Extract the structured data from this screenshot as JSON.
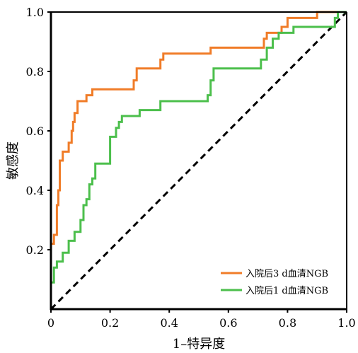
{
  "chart_data": {
    "type": "line",
    "title": "",
    "xlabel": "1–特异度",
    "ylabel": "敏感度",
    "xlim": [
      0,
      1
    ],
    "ylim": [
      0,
      1
    ],
    "x_ticks": [
      "0",
      "0.2",
      "0.4",
      "0.6",
      "0.8",
      "1.0"
    ],
    "y_ticks": [
      "0.2",
      "0.4",
      "0.6",
      "0.8",
      "1.0"
    ],
    "grid": false,
    "legend_position": "bottom-right",
    "series": [
      {
        "name": "入院后3 d血清NGB",
        "color": "#f07c28",
        "points": [
          [
            0.0,
            0.0
          ],
          [
            0.0,
            0.22
          ],
          [
            0.01,
            0.22
          ],
          [
            0.01,
            0.25
          ],
          [
            0.02,
            0.25
          ],
          [
            0.02,
            0.35
          ],
          [
            0.025,
            0.35
          ],
          [
            0.025,
            0.4
          ],
          [
            0.03,
            0.4
          ],
          [
            0.03,
            0.5
          ],
          [
            0.04,
            0.5
          ],
          [
            0.04,
            0.53
          ],
          [
            0.06,
            0.53
          ],
          [
            0.06,
            0.56
          ],
          [
            0.07,
            0.56
          ],
          [
            0.07,
            0.6
          ],
          [
            0.075,
            0.6
          ],
          [
            0.075,
            0.63
          ],
          [
            0.08,
            0.63
          ],
          [
            0.08,
            0.66
          ],
          [
            0.09,
            0.66
          ],
          [
            0.09,
            0.7
          ],
          [
            0.12,
            0.7
          ],
          [
            0.12,
            0.72
          ],
          [
            0.14,
            0.72
          ],
          [
            0.14,
            0.74
          ],
          [
            0.28,
            0.74
          ],
          [
            0.28,
            0.77
          ],
          [
            0.29,
            0.77
          ],
          [
            0.29,
            0.81
          ],
          [
            0.37,
            0.81
          ],
          [
            0.37,
            0.84
          ],
          [
            0.38,
            0.84
          ],
          [
            0.38,
            0.86
          ],
          [
            0.54,
            0.86
          ],
          [
            0.54,
            0.88
          ],
          [
            0.72,
            0.88
          ],
          [
            0.72,
            0.91
          ],
          [
            0.73,
            0.91
          ],
          [
            0.73,
            0.93
          ],
          [
            0.78,
            0.93
          ],
          [
            0.78,
            0.95
          ],
          [
            0.8,
            0.95
          ],
          [
            0.8,
            0.98
          ],
          [
            0.9,
            0.98
          ],
          [
            0.9,
            1.0
          ],
          [
            1.0,
            1.0
          ]
        ]
      },
      {
        "name": "入院后1 d血清NGB",
        "color": "#4cbf4c",
        "points": [
          [
            0.0,
            0.0
          ],
          [
            0.0,
            0.09
          ],
          [
            0.01,
            0.09
          ],
          [
            0.01,
            0.14
          ],
          [
            0.02,
            0.14
          ],
          [
            0.02,
            0.16
          ],
          [
            0.04,
            0.16
          ],
          [
            0.04,
            0.19
          ],
          [
            0.06,
            0.19
          ],
          [
            0.06,
            0.23
          ],
          [
            0.08,
            0.23
          ],
          [
            0.08,
            0.26
          ],
          [
            0.1,
            0.26
          ],
          [
            0.1,
            0.3
          ],
          [
            0.11,
            0.3
          ],
          [
            0.11,
            0.35
          ],
          [
            0.12,
            0.35
          ],
          [
            0.12,
            0.37
          ],
          [
            0.13,
            0.37
          ],
          [
            0.13,
            0.42
          ],
          [
            0.14,
            0.42
          ],
          [
            0.14,
            0.44
          ],
          [
            0.15,
            0.44
          ],
          [
            0.15,
            0.49
          ],
          [
            0.2,
            0.49
          ],
          [
            0.2,
            0.58
          ],
          [
            0.22,
            0.58
          ],
          [
            0.22,
            0.61
          ],
          [
            0.23,
            0.61
          ],
          [
            0.23,
            0.63
          ],
          [
            0.24,
            0.63
          ],
          [
            0.24,
            0.65
          ],
          [
            0.3,
            0.65
          ],
          [
            0.3,
            0.67
          ],
          [
            0.37,
            0.67
          ],
          [
            0.37,
            0.7
          ],
          [
            0.53,
            0.7
          ],
          [
            0.53,
            0.72
          ],
          [
            0.54,
            0.72
          ],
          [
            0.54,
            0.77
          ],
          [
            0.55,
            0.77
          ],
          [
            0.55,
            0.81
          ],
          [
            0.71,
            0.81
          ],
          [
            0.71,
            0.84
          ],
          [
            0.73,
            0.84
          ],
          [
            0.73,
            0.88
          ],
          [
            0.75,
            0.88
          ],
          [
            0.75,
            0.91
          ],
          [
            0.77,
            0.91
          ],
          [
            0.77,
            0.93
          ],
          [
            0.82,
            0.93
          ],
          [
            0.82,
            0.95
          ],
          [
            0.96,
            0.95
          ],
          [
            0.96,
            0.98
          ],
          [
            0.97,
            0.98
          ],
          [
            0.97,
            1.0
          ],
          [
            1.0,
            1.0
          ]
        ]
      },
      {
        "name": "",
        "color": "#000000",
        "dashed": true,
        "points": [
          [
            0,
            0
          ],
          [
            1,
            1
          ]
        ]
      }
    ]
  }
}
